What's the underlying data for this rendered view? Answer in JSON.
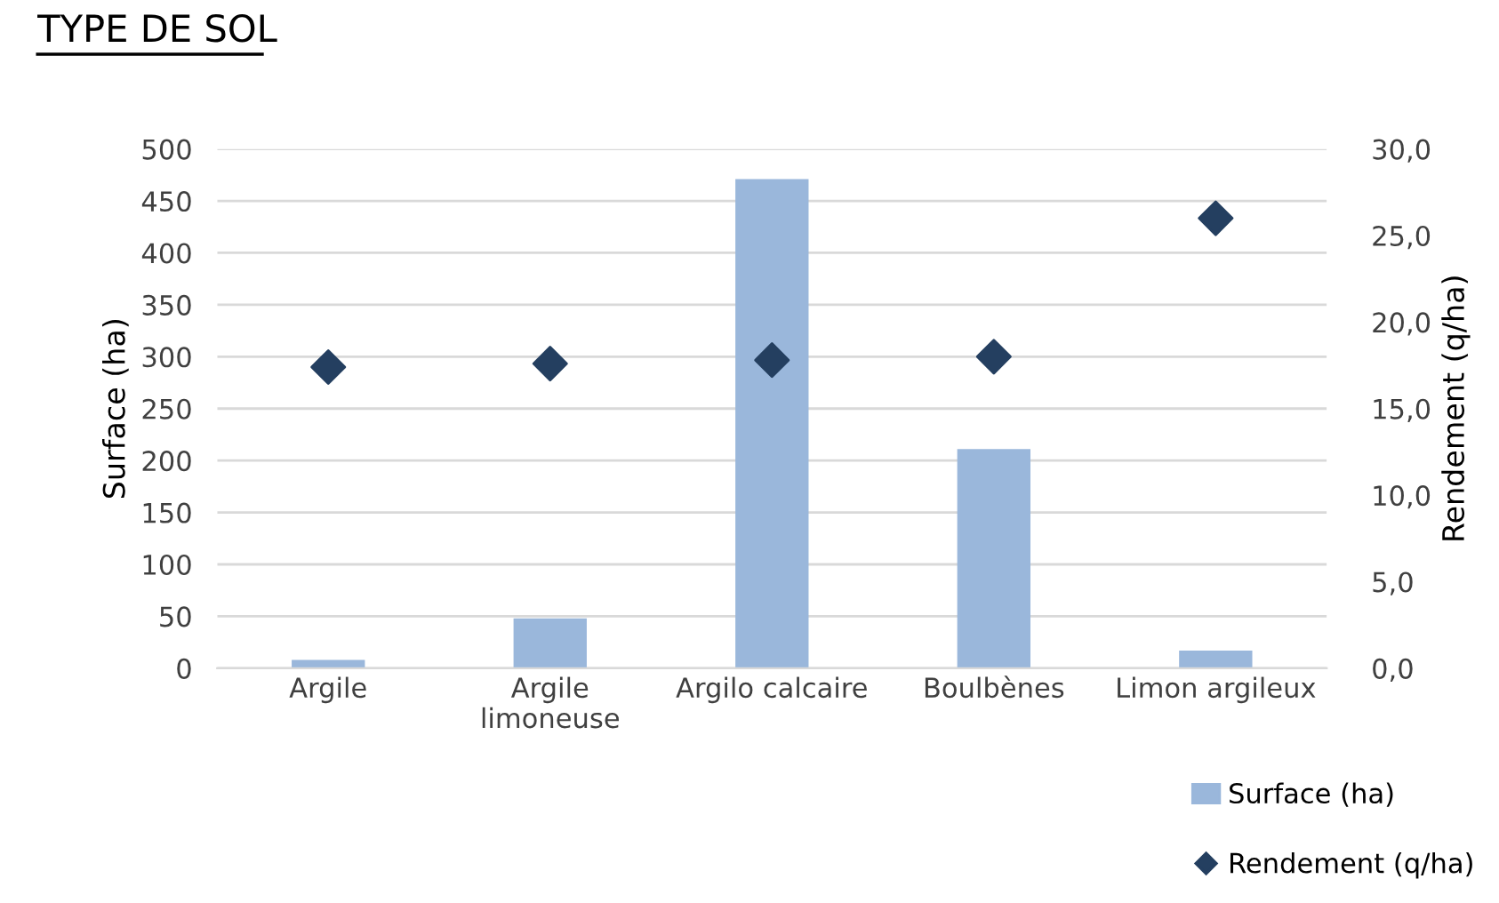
{
  "chart_data": {
    "type": "bar",
    "title": "TYPE DE SOL",
    "categories": [
      "Argile",
      "Argile\nlimoneuse",
      "Argilo calcaire",
      "Boulbènes",
      "Limon argileux"
    ],
    "series": [
      {
        "name": "Surface (ha)",
        "color": "#9ab7db",
        "values": [
          8,
          48,
          471,
          211,
          17
        ]
      },
      {
        "name": "Rendement (q/ha)",
        "type": "scatter",
        "axis": "y2",
        "marker": "diamond",
        "color": "#243f60",
        "values": [
          17.4,
          17.6,
          17.8,
          18.0,
          26.0
        ]
      }
    ],
    "ylabel": "Surface (ha)",
    "y2label": "Rendement (q/ha)",
    "ylim": [
      0,
      500
    ],
    "yticks": [
      0,
      50,
      100,
      150,
      200,
      250,
      300,
      350,
      400,
      450,
      500
    ],
    "y2lim": [
      0,
      30
    ],
    "y2ticks": [
      {
        "value": 0,
        "label": "0,0"
      },
      {
        "value": 5,
        "label": "5,0"
      },
      {
        "value": 10,
        "label": "10,0"
      },
      {
        "value": 15,
        "label": "15,0"
      },
      {
        "value": 20,
        "label": "20,0"
      },
      {
        "value": 25,
        "label": "25,0"
      },
      {
        "value": 30,
        "label": "30,0"
      }
    ],
    "grid": "y",
    "legend": "bottom right"
  }
}
